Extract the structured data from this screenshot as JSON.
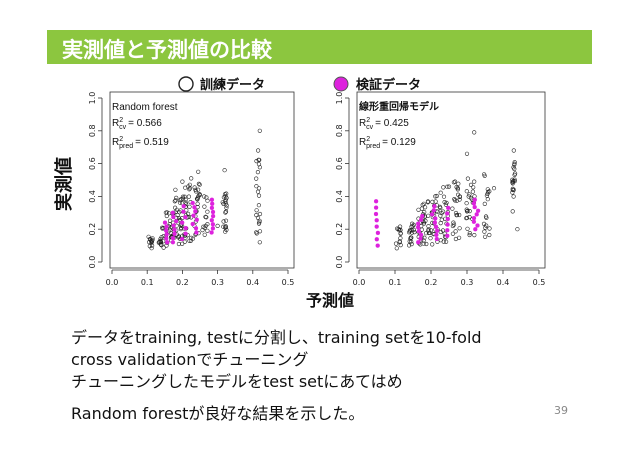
{
  "slide": {
    "title": "実測値と予測値の比較",
    "page_number": "39",
    "body_lines": [
      "データをtraining, testに分割し、training setを10-fold",
      "cross validationでチューニング",
      "チューニングしたモデルをtest setにあてはめ",
      "Random forestが良好な結果を示した。"
    ]
  },
  "legend": [
    {
      "label": "訓練データ",
      "type": "open-circle"
    },
    {
      "label": "検証データ",
      "type": "filled-circle",
      "color": "#dd22dd"
    }
  ],
  "chart_data": [
    {
      "type": "scatter",
      "model": "Random forest",
      "stats": [
        {
          "name": "R",
          "sup": "2",
          "sub": "cv",
          "value": "= 0.566"
        },
        {
          "name": "R",
          "sup": "2",
          "sub": "pred",
          "value": "= 0.519"
        }
      ],
      "xlabel": "予測値",
      "ylabel": "実測値",
      "xlim": [
        0.0,
        0.5
      ],
      "ylim": [
        0.0,
        1.0
      ],
      "x_ticks": [
        "0.0",
        "0.1",
        "0.2",
        "0.3",
        "0.4",
        "0.5"
      ],
      "y_ticks": [
        "0.0",
        "0.2",
        "0.4",
        "0.6",
        "0.8",
        "1.0"
      ],
      "train_clusters": [
        {
          "x": 0.11,
          "spread": 0.006,
          "ymin": 0.08,
          "ymax": 0.16,
          "n": 14
        },
        {
          "x": 0.14,
          "spread": 0.008,
          "ymin": 0.08,
          "ymax": 0.22,
          "n": 16
        },
        {
          "x": 0.165,
          "spread": 0.012,
          "ymin": 0.1,
          "ymax": 0.32,
          "n": 30
        },
        {
          "x": 0.19,
          "spread": 0.012,
          "ymin": 0.1,
          "ymax": 0.4,
          "n": 34
        },
        {
          "x": 0.215,
          "spread": 0.01,
          "ymin": 0.12,
          "ymax": 0.48,
          "n": 30
        },
        {
          "x": 0.24,
          "spread": 0.01,
          "ymin": 0.14,
          "ymax": 0.48,
          "n": 24
        },
        {
          "x": 0.265,
          "spread": 0.008,
          "ymin": 0.16,
          "ymax": 0.42,
          "n": 14
        },
        {
          "x": 0.32,
          "spread": 0.006,
          "ymin": 0.18,
          "ymax": 0.48,
          "n": 22
        },
        {
          "x": 0.415,
          "spread": 0.006,
          "ymin": 0.16,
          "ymax": 0.64,
          "n": 22
        }
      ],
      "train_outliers": [
        {
          "x": 0.245,
          "y": 0.55
        },
        {
          "x": 0.2,
          "y": 0.49
        },
        {
          "x": 0.18,
          "y": 0.44
        },
        {
          "x": 0.32,
          "y": 0.56
        },
        {
          "x": 0.415,
          "y": 0.68
        },
        {
          "x": 0.42,
          "y": 0.8
        },
        {
          "x": 0.42,
          "y": 0.12
        },
        {
          "x": 0.225,
          "y": 0.51
        },
        {
          "x": 0.3,
          "y": 0.22
        }
      ],
      "test_clusters": [
        {
          "x": 0.155,
          "spread": 0.006,
          "ymin": 0.12,
          "ymax": 0.24,
          "n": 6
        },
        {
          "x": 0.18,
          "spread": 0.008,
          "ymin": 0.12,
          "ymax": 0.3,
          "n": 8
        },
        {
          "x": 0.205,
          "spread": 0.006,
          "ymin": 0.14,
          "ymax": 0.34,
          "n": 7
        },
        {
          "x": 0.235,
          "spread": 0.006,
          "ymin": 0.18,
          "ymax": 0.36,
          "n": 8
        },
        {
          "x": 0.285,
          "spread": 0.003,
          "ymin": 0.18,
          "ymax": 0.38,
          "n": 9
        }
      ]
    },
    {
      "type": "scatter",
      "model": "線形重回帰モデル",
      "stats": [
        {
          "name": "R",
          "sup": "2",
          "sub": "cv",
          "value": "= 0.425"
        },
        {
          "name": "R",
          "sup": "2",
          "sub": "pred",
          "value": "= 0.129"
        }
      ],
      "xlabel": "予測値",
      "ylabel": "実測値",
      "xlim": [
        0.0,
        0.5
      ],
      "ylim": [
        0.0,
        1.0
      ],
      "x_ticks": [
        "0.0",
        "0.1",
        "0.2",
        "0.3",
        "0.4",
        "0.5"
      ],
      "y_ticks": [
        "0.0",
        "0.2",
        "0.4",
        "0.6",
        "0.8",
        "1.0"
      ],
      "train_clusters": [
        {
          "x": 0.11,
          "spread": 0.008,
          "ymin": 0.08,
          "ymax": 0.22,
          "n": 14
        },
        {
          "x": 0.145,
          "spread": 0.01,
          "ymin": 0.08,
          "ymax": 0.26,
          "n": 18
        },
        {
          "x": 0.175,
          "spread": 0.012,
          "ymin": 0.1,
          "ymax": 0.36,
          "n": 30
        },
        {
          "x": 0.205,
          "spread": 0.014,
          "ymin": 0.1,
          "ymax": 0.42,
          "n": 32
        },
        {
          "x": 0.235,
          "spread": 0.012,
          "ymin": 0.12,
          "ymax": 0.46,
          "n": 26
        },
        {
          "x": 0.27,
          "spread": 0.012,
          "ymin": 0.14,
          "ymax": 0.5,
          "n": 26
        },
        {
          "x": 0.31,
          "spread": 0.012,
          "ymin": 0.16,
          "ymax": 0.52,
          "n": 26
        },
        {
          "x": 0.355,
          "spread": 0.008,
          "ymin": 0.14,
          "ymax": 0.56,
          "n": 18
        },
        {
          "x": 0.43,
          "spread": 0.004,
          "ymin": 0.3,
          "ymax": 0.66,
          "n": 20
        }
      ],
      "train_outliers": [
        {
          "x": 0.3,
          "y": 0.66
        },
        {
          "x": 0.32,
          "y": 0.79
        },
        {
          "x": 0.43,
          "y": 0.68
        },
        {
          "x": 0.375,
          "y": 0.45
        },
        {
          "x": 0.25,
          "y": 0.46
        },
        {
          "x": 0.44,
          "y": 0.2
        }
      ],
      "test_clusters": [
        {
          "x": 0.05,
          "spread": 0.003,
          "ymin": 0.1,
          "ymax": 0.37,
          "n": 8
        },
        {
          "x": 0.17,
          "spread": 0.006,
          "ymin": 0.12,
          "ymax": 0.28,
          "n": 8
        },
        {
          "x": 0.21,
          "spread": 0.008,
          "ymin": 0.14,
          "ymax": 0.34,
          "n": 9
        },
        {
          "x": 0.245,
          "spread": 0.006,
          "ymin": 0.16,
          "ymax": 0.33,
          "n": 6
        },
        {
          "x": 0.325,
          "spread": 0.006,
          "ymin": 0.2,
          "ymax": 0.38,
          "n": 9
        }
      ]
    }
  ]
}
